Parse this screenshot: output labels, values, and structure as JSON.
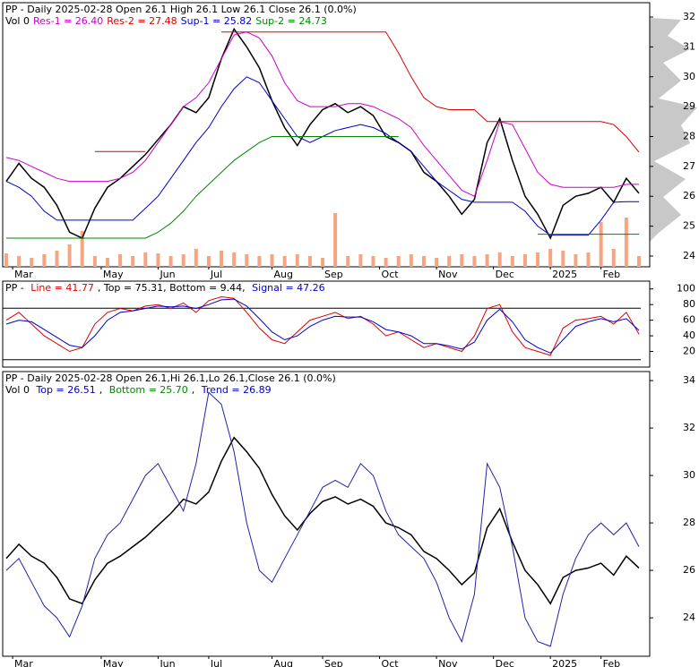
{
  "chart_data": [
    {
      "type": "line",
      "header": "PP - Daily 2025-02-28 Open 26.1  High 26.1  Low 26.1  Close 26.1 (0.0%)",
      "legend": [
        {
          "label": "Vol 0",
          "color": "#000000"
        },
        {
          "label": "Res-1 = 26.40",
          "color": "#cc00cc"
        },
        {
          "label": "Res-2 = 27.48",
          "color": "#dd0000"
        },
        {
          "label": "Sup-1 = 25.82",
          "color": "#0000cc"
        },
        {
          "label": "Sup-2 = 24.73",
          "color": "#008800"
        }
      ],
      "categories": 51,
      "xticks": [
        {
          "value": 0.5,
          "label": "Mar"
        },
        {
          "value": 7.5,
          "label": "May"
        },
        {
          "value": 12,
          "label": "Jun"
        },
        {
          "value": 16,
          "label": "Jul"
        },
        {
          "value": 21,
          "label": "Aug"
        },
        {
          "value": 25,
          "label": "Sep"
        },
        {
          "value": 29.5,
          "label": "Oct"
        },
        {
          "value": 34,
          "label": "Nov"
        },
        {
          "value": 38.5,
          "label": "Dec"
        },
        {
          "value": 43,
          "label": "2025"
        },
        {
          "value": 47,
          "label": "Feb"
        }
      ],
      "ylim": [
        23.64,
        32.48
      ],
      "yticks": [
        24,
        25,
        26,
        27,
        28,
        29,
        30,
        31,
        32
      ],
      "volume": {
        "color": "#f4a582",
        "vlim": [
          0,
          100
        ],
        "values": [
          15,
          12,
          10,
          14,
          18,
          25,
          40,
          12,
          10,
          14,
          12,
          16,
          15,
          12,
          14,
          20,
          12,
          18,
          16,
          14,
          12,
          14,
          12,
          14,
          12,
          10,
          60,
          12,
          14,
          12,
          10,
          12,
          14,
          12,
          10,
          12,
          14,
          12,
          14,
          16,
          12,
          14,
          16,
          20,
          18,
          14,
          16,
          50,
          20,
          55,
          12
        ]
      },
      "series": [
        {
          "color": "#000000",
          "width": 1.5,
          "values": [
            26.5,
            27.1,
            26.6,
            26.3,
            25.7,
            24.8,
            24.6,
            25.6,
            26.3,
            26.6,
            27.0,
            27.4,
            27.9,
            28.4,
            29.0,
            28.8,
            29.3,
            30.6,
            31.6,
            31.0,
            30.3,
            29.2,
            28.3,
            27.7,
            28.4,
            28.9,
            29.1,
            28.8,
            29.0,
            28.7,
            28.0,
            27.8,
            27.5,
            26.8,
            26.5,
            26.0,
            25.4,
            25.9,
            27.8,
            28.6,
            27.2,
            26.0,
            25.4,
            24.6,
            25.7,
            26.0,
            26.1,
            26.3,
            25.8,
            26.6,
            26.1
          ]
        },
        {
          "color": "#cc00cc",
          "width": 1,
          "values": [
            27.3,
            27.2,
            27.0,
            26.8,
            26.6,
            26.5,
            26.5,
            26.5,
            26.5,
            26.6,
            26.8,
            27.2,
            27.8,
            28.4,
            29.0,
            29.3,
            29.8,
            30.6,
            31.4,
            31.5,
            31.3,
            30.7,
            29.8,
            29.2,
            29.0,
            29.0,
            29.0,
            29.1,
            29.1,
            29.0,
            28.8,
            28.6,
            28.3,
            27.7,
            27.2,
            26.7,
            26.2,
            26.0,
            27.2,
            28.5,
            28.4,
            27.6,
            26.8,
            26.4,
            26.3,
            26.3,
            26.3,
            26.3,
            26.3,
            26.4,
            26.4
          ]
        },
        {
          "color": "#dd0000",
          "width": 1,
          "values": [
            null,
            null,
            null,
            null,
            null,
            null,
            null,
            27.5,
            27.5,
            27.5,
            27.5,
            27.5,
            null,
            null,
            null,
            null,
            null,
            31.5,
            31.5,
            31.5,
            31.5,
            31.5,
            31.5,
            31.5,
            31.5,
            31.5,
            31.5,
            31.5,
            31.5,
            31.5,
            31.5,
            30.8,
            30.0,
            29.3,
            29.0,
            28.9,
            28.9,
            28.9,
            28.5,
            28.5,
            28.5,
            28.5,
            28.5,
            28.5,
            28.5,
            28.5,
            28.5,
            28.5,
            28.4,
            28.0,
            27.48
          ]
        },
        {
          "color": "#0000cc",
          "width": 1,
          "values": [
            26.5,
            26.3,
            26.0,
            25.5,
            25.2,
            25.2,
            25.2,
            25.2,
            25.2,
            25.2,
            25.2,
            25.6,
            26.0,
            26.6,
            27.2,
            27.8,
            28.3,
            29.0,
            29.6,
            30.0,
            29.8,
            29.2,
            28.6,
            28.0,
            27.8,
            28.0,
            28.2,
            28.3,
            28.4,
            28.3,
            28.1,
            27.8,
            27.5,
            27.0,
            26.5,
            26.2,
            25.9,
            25.8,
            25.8,
            25.8,
            25.8,
            25.5,
            25.0,
            24.7,
            24.7,
            24.7,
            24.7,
            25.2,
            25.8,
            25.82,
            25.82
          ]
        },
        {
          "color": "#008800",
          "width": 1,
          "values": [
            24.6,
            24.6,
            24.6,
            24.6,
            24.6,
            24.6,
            24.6,
            24.6,
            24.6,
            24.6,
            24.6,
            24.6,
            24.8,
            25.1,
            25.5,
            26.0,
            26.4,
            26.8,
            27.2,
            27.5,
            27.8,
            28.0,
            28.0,
            28.0,
            28.0,
            28.0,
            28.0,
            28.0,
            28.0,
            28.0,
            28.0,
            28.0,
            null,
            null,
            null,
            null,
            null,
            null,
            null,
            null,
            null,
            null,
            24.73,
            24.73,
            24.73,
            24.73,
            24.73,
            24.73,
            24.73,
            24.73,
            24.73
          ]
        }
      ]
    },
    {
      "type": "line",
      "legend": [
        {
          "label": "PP - ",
          "color": "#000000"
        },
        {
          "label": "Line = 41.77",
          "color": "#dd0000"
        },
        {
          "label": ", Top = 75.31, Bottom = 9.44, ",
          "color": "#000000"
        },
        {
          "label": "Signal = 47.26",
          "color": "#0000cc"
        }
      ],
      "categories": 51,
      "ylim": [
        0,
        110
      ],
      "yticks": [
        20,
        40,
        60,
        80,
        100
      ],
      "hlines": [
        {
          "value": 75.31,
          "color": "#000000"
        },
        {
          "value": 9.44,
          "color": "#000000"
        }
      ],
      "series": [
        {
          "color": "#dd0000",
          "width": 1,
          "values": [
            60,
            70,
            55,
            40,
            30,
            20,
            25,
            55,
            70,
            75,
            72,
            78,
            80,
            75,
            82,
            70,
            85,
            90,
            88,
            70,
            50,
            35,
            30,
            45,
            60,
            65,
            70,
            62,
            65,
            55,
            40,
            45,
            35,
            25,
            30,
            25,
            20,
            40,
            75,
            80,
            45,
            25,
            20,
            15,
            50,
            60,
            62,
            65,
            55,
            70,
            42
          ]
        },
        {
          "color": "#0000cc",
          "width": 1,
          "values": [
            55,
            60,
            58,
            48,
            38,
            28,
            25,
            40,
            60,
            70,
            72,
            75,
            78,
            77,
            78,
            75,
            80,
            86,
            87,
            78,
            62,
            45,
            35,
            40,
            52,
            60,
            65,
            64,
            64,
            58,
            48,
            45,
            40,
            30,
            30,
            27,
            23,
            32,
            60,
            74,
            58,
            35,
            25,
            18,
            35,
            52,
            58,
            62,
            58,
            62,
            47
          ]
        }
      ]
    },
    {
      "type": "line",
      "header": "PP - Daily 2025-02-28 Open 26.1,Hi 26.1,Lo 26.1,Close 26.1 (0.0%)",
      "legend": [
        {
          "label": "Vol 0 ",
          "color": "#000000"
        },
        {
          "label": "Top = 26.51",
          "color": "#0000cc"
        },
        {
          "label": ", ",
          "color": "#000000"
        },
        {
          "label": "Bottom = 25.70",
          "color": "#008800"
        },
        {
          "label": ", ",
          "color": "#000000"
        },
        {
          "label": "Trend = 26.89",
          "color": "#0000cc"
        }
      ],
      "categories": 51,
      "xticks": [
        {
          "value": 0.5,
          "label": "Mar"
        },
        {
          "value": 7.5,
          "label": "May"
        },
        {
          "value": 12,
          "label": "Jun"
        },
        {
          "value": 16,
          "label": "Jul"
        },
        {
          "value": 21,
          "label": "Aug"
        },
        {
          "value": 25,
          "label": "Sep"
        },
        {
          "value": 29.5,
          "label": "Oct"
        },
        {
          "value": 34,
          "label": "Nov"
        },
        {
          "value": 38.5,
          "label": "Dec"
        },
        {
          "value": 43,
          "label": "2025"
        },
        {
          "value": 47,
          "label": "Feb"
        }
      ],
      "ylim": [
        22.38,
        34.38
      ],
      "yticks": [
        24,
        26,
        28,
        30,
        32,
        34
      ],
      "series": [
        {
          "color": "#000000",
          "width": 1.5,
          "values": [
            26.5,
            27.1,
            26.6,
            26.3,
            25.7,
            24.8,
            24.6,
            25.6,
            26.3,
            26.6,
            27.0,
            27.4,
            27.9,
            28.4,
            29.0,
            28.8,
            29.3,
            30.6,
            31.6,
            31.0,
            30.3,
            29.2,
            28.3,
            27.7,
            28.4,
            28.9,
            29.1,
            28.8,
            29.0,
            28.7,
            28.0,
            27.8,
            27.5,
            26.8,
            26.5,
            26.0,
            25.4,
            25.9,
            27.8,
            28.6,
            27.2,
            26.0,
            25.4,
            24.6,
            25.7,
            26.0,
            26.1,
            26.3,
            25.8,
            26.6,
            26.1
          ]
        },
        {
          "color": "#2222aa",
          "width": 1,
          "values": [
            26.0,
            26.5,
            25.5,
            24.5,
            24.0,
            23.2,
            24.5,
            26.5,
            27.5,
            28.0,
            29.0,
            30.0,
            30.5,
            29.5,
            28.5,
            30.5,
            33.5,
            33.0,
            31.0,
            28.0,
            26.0,
            25.5,
            26.5,
            27.5,
            28.5,
            29.5,
            29.8,
            29.5,
            30.5,
            30.0,
            28.5,
            27.5,
            27.0,
            26.5,
            25.5,
            24.0,
            23.0,
            25.0,
            30.5,
            29.5,
            27.0,
            24.0,
            23.0,
            22.8,
            25.0,
            26.5,
            27.5,
            28.0,
            27.5,
            28.0,
            27.0
          ]
        }
      ]
    }
  ]
}
